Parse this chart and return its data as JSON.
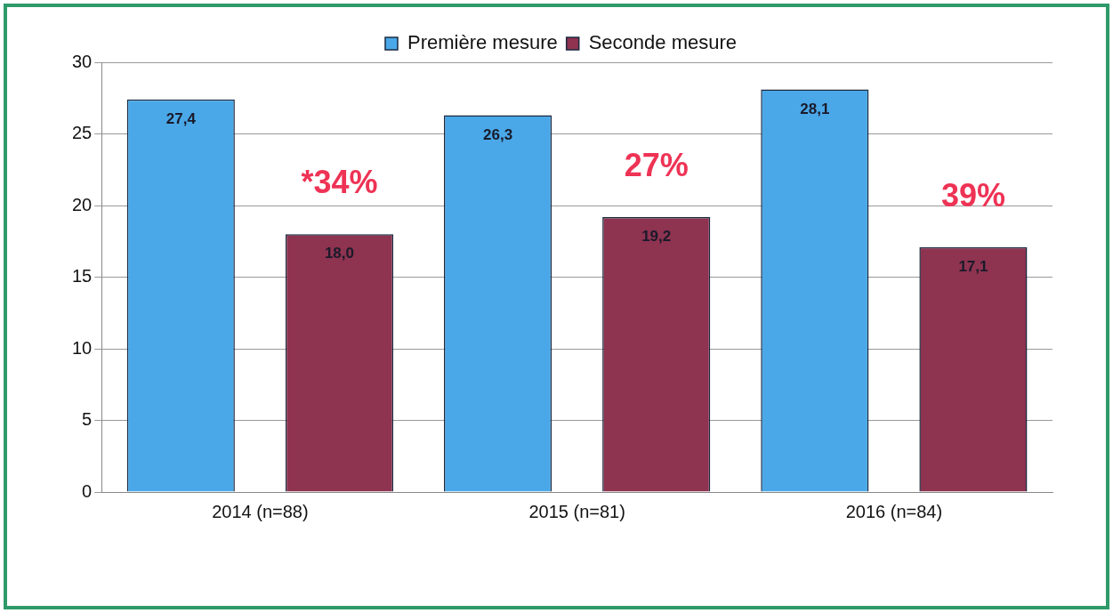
{
  "chart_data": {
    "type": "bar",
    "categories": [
      "2014 (n=88)",
      "2015 (n=81)",
      "2016 (n=84)"
    ],
    "series": [
      {
        "name": "Première mesure",
        "color": "#4aa8e8",
        "values": [
          27.4,
          26.3,
          28.1
        ],
        "value_labels": [
          "27,4",
          "26,3",
          "28,1"
        ]
      },
      {
        "name": "Seconde mesure",
        "color": "#8e3350",
        "values": [
          18.0,
          19.2,
          17.1
        ],
        "value_labels": [
          "18,0",
          "19,2",
          "17,1"
        ]
      }
    ],
    "annotations": [
      "*34%",
      "27%",
      "39%"
    ],
    "ylim": [
      0,
      30
    ],
    "yticks": [
      0,
      5,
      10,
      15,
      20,
      25,
      30
    ],
    "grid": "y",
    "legend": "top"
  }
}
